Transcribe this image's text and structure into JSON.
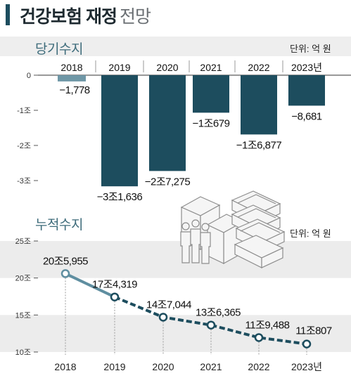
{
  "header": {
    "title_bold": "건강보험 재정",
    "title_light": "전망"
  },
  "section1": {
    "title": "당기수지",
    "unit": "단위: 억 원"
  },
  "section2": {
    "title": "누적수지",
    "unit": "단위: 억 원"
  },
  "chart_data": [
    {
      "type": "bar",
      "title": "당기수지",
      "categories": [
        "2018",
        "2019",
        "2020",
        "2021",
        "2022",
        "2023년"
      ],
      "values": [
        -1778,
        -31636,
        -27275,
        -10679,
        -16877,
        -8681
      ],
      "value_labels": [
        "−1,778",
        "−3조1,636",
        "−2조7,275",
        "−1조679",
        "−1조6,877",
        "−8,681"
      ],
      "y_ticks": [
        0,
        -10000,
        -20000,
        -30000
      ],
      "y_tick_labels": [
        "0",
        "-1조",
        "-2조",
        "-3조"
      ],
      "ylim": [
        -33000,
        0
      ],
      "unit": "억 원",
      "colors": {
        "first_bar": "#6f97a6",
        "bars": "#1d4d5e"
      }
    },
    {
      "type": "line",
      "title": "누적수지",
      "x": [
        "2018",
        "2019",
        "2020",
        "2021",
        "2022",
        "2023년"
      ],
      "values": [
        205955,
        174319,
        147044,
        136365,
        119488,
        110807
      ],
      "value_labels": [
        "20조5,955",
        "17조4,319",
        "14조7,044",
        "13조6,365",
        "11조9,488",
        "11조807"
      ],
      "y_ticks": [
        100000,
        150000,
        200000,
        250000
      ],
      "y_tick_labels": [
        "10조",
        "15조",
        "20조",
        "25조"
      ],
      "ylim": [
        100000,
        250000
      ],
      "unit": "억 원",
      "line_style": "solid for 2018–2019, dashed from 2019",
      "colors": {
        "solid_line": "#5f8ea0",
        "dashed_line": "#1d4d5e",
        "band": "#ececec"
      }
    }
  ]
}
